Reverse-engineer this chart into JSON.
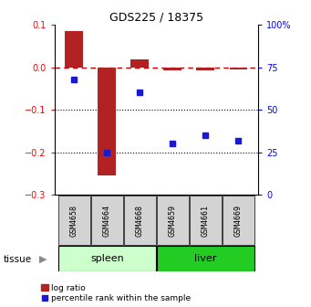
{
  "title": "GDS225 / 18375",
  "samples": [
    "GSM4658",
    "GSM4664",
    "GSM4668",
    "GSM4659",
    "GSM4661",
    "GSM4669"
  ],
  "log_ratio": [
    0.085,
    -0.255,
    0.018,
    -0.008,
    -0.008,
    -0.005
  ],
  "percentile": [
    68,
    25,
    60,
    30,
    35,
    32
  ],
  "left_ylim": [
    -0.3,
    0.1
  ],
  "right_ylim": [
    0,
    100
  ],
  "left_yticks": [
    -0.3,
    -0.2,
    -0.1,
    0.0,
    0.1
  ],
  "right_yticks": [
    0,
    25,
    50,
    75,
    100
  ],
  "right_yticklabels": [
    "0",
    "25",
    "50",
    "75",
    "100%"
  ],
  "bar_color": "#b22222",
  "dot_color": "#1a1acd",
  "spleen_color": "#ccffcc",
  "liver_color": "#22cc22",
  "tissue_label": "tissue",
  "groups": [
    {
      "name": "spleen",
      "indices": [
        0,
        1,
        2
      ],
      "color": "#ccffcc"
    },
    {
      "name": "liver",
      "indices": [
        3,
        4,
        5
      ],
      "color": "#22cc22"
    }
  ],
  "legend_log_ratio": "log ratio",
  "legend_percentile": "percentile rank within the sample",
  "dotted_lines": [
    -0.1,
    -0.2
  ],
  "zero_line_color": "#cc0000",
  "bar_width": 0.55
}
